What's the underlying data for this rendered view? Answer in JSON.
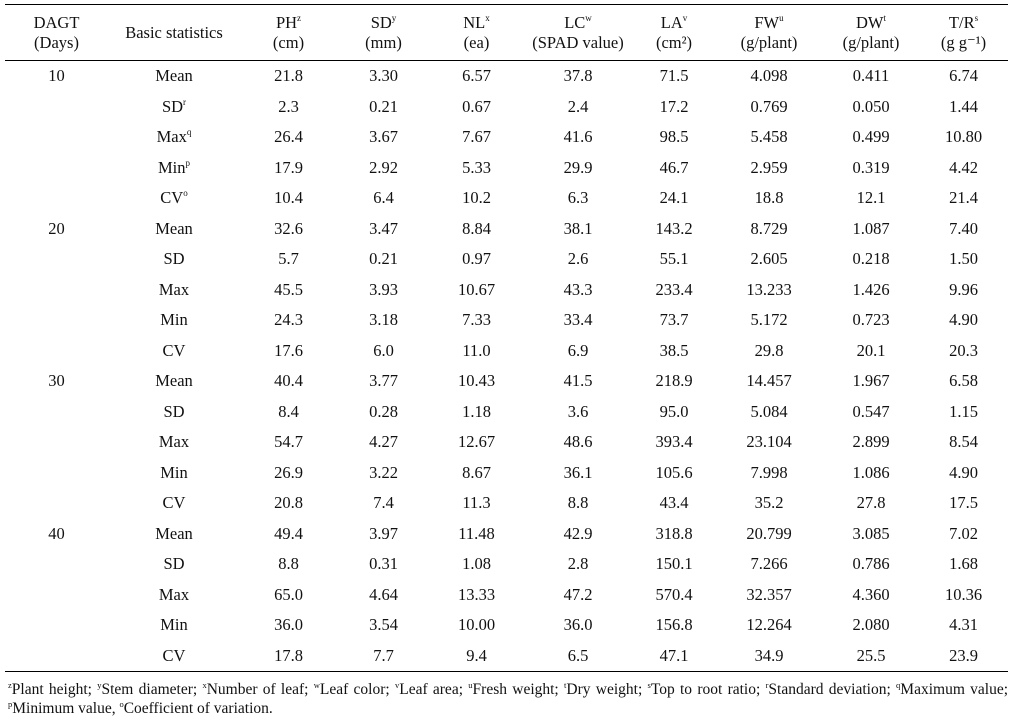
{
  "columns": [
    {
      "id": "dagt",
      "line1": "DAGT",
      "sup": "",
      "line2": "(Days)"
    },
    {
      "id": "stat",
      "line1": "Basic statistics",
      "sup": "",
      "line2": ""
    },
    {
      "id": "ph",
      "line1": "PH",
      "sup": "z",
      "line2": "(cm)"
    },
    {
      "id": "sd",
      "line1": "SD",
      "sup": "y",
      "line2": "(mm)"
    },
    {
      "id": "nl",
      "line1": "NL",
      "sup": "x",
      "line2": "(ea)"
    },
    {
      "id": "lc",
      "line1": "LC",
      "sup": "w",
      "line2": "(SPAD value)"
    },
    {
      "id": "la",
      "line1": "LA",
      "sup": "v",
      "line2": "(cm²)"
    },
    {
      "id": "fw",
      "line1": "FW",
      "sup": "u",
      "line2": "(g/plant)"
    },
    {
      "id": "dw",
      "line1": "DW",
      "sup": "t",
      "line2": "(g/plant)"
    },
    {
      "id": "tr",
      "line1": "T/R",
      "sup": "s",
      "line2": "(g g⁻¹)"
    }
  ],
  "groups": [
    {
      "dagt": "10",
      "rows": [
        {
          "stat": "Mean",
          "sup": "",
          "values": [
            "21.8",
            "3.30",
            "6.57",
            "37.8",
            "71.5",
            "4.098",
            "0.411",
            "6.74"
          ]
        },
        {
          "stat": "SD",
          "sup": "r",
          "values": [
            "2.3",
            "0.21",
            "0.67",
            "2.4",
            "17.2",
            "0.769",
            "0.050",
            "1.44"
          ]
        },
        {
          "stat": "Max",
          "sup": "q",
          "values": [
            "26.4",
            "3.67",
            "7.67",
            "41.6",
            "98.5",
            "5.458",
            "0.499",
            "10.80"
          ]
        },
        {
          "stat": "Min",
          "sup": "p",
          "values": [
            "17.9",
            "2.92",
            "5.33",
            "29.9",
            "46.7",
            "2.959",
            "0.319",
            "4.42"
          ]
        },
        {
          "stat": "CV",
          "sup": "o",
          "values": [
            "10.4",
            "6.4",
            "10.2",
            "6.3",
            "24.1",
            "18.8",
            "12.1",
            "21.4"
          ]
        }
      ]
    },
    {
      "dagt": "20",
      "rows": [
        {
          "stat": "Mean",
          "sup": "",
          "values": [
            "32.6",
            "3.47",
            "8.84",
            "38.1",
            "143.2",
            "8.729",
            "1.087",
            "7.40"
          ]
        },
        {
          "stat": "SD",
          "sup": "",
          "values": [
            "5.7",
            "0.21",
            "0.97",
            "2.6",
            "55.1",
            "2.605",
            "0.218",
            "1.50"
          ]
        },
        {
          "stat": "Max",
          "sup": "",
          "values": [
            "45.5",
            "3.93",
            "10.67",
            "43.3",
            "233.4",
            "13.233",
            "1.426",
            "9.96"
          ]
        },
        {
          "stat": "Min",
          "sup": "",
          "values": [
            "24.3",
            "3.18",
            "7.33",
            "33.4",
            "73.7",
            "5.172",
            "0.723",
            "4.90"
          ]
        },
        {
          "stat": "CV",
          "sup": "",
          "values": [
            "17.6",
            "6.0",
            "11.0",
            "6.9",
            "38.5",
            "29.8",
            "20.1",
            "20.3"
          ]
        }
      ]
    },
    {
      "dagt": "30",
      "rows": [
        {
          "stat": "Mean",
          "sup": "",
          "values": [
            "40.4",
            "3.77",
            "10.43",
            "41.5",
            "218.9",
            "14.457",
            "1.967",
            "6.58"
          ]
        },
        {
          "stat": "SD",
          "sup": "",
          "values": [
            "8.4",
            "0.28",
            "1.18",
            "3.6",
            "95.0",
            "5.084",
            "0.547",
            "1.15"
          ]
        },
        {
          "stat": "Max",
          "sup": "",
          "values": [
            "54.7",
            "4.27",
            "12.67",
            "48.6",
            "393.4",
            "23.104",
            "2.899",
            "8.54"
          ]
        },
        {
          "stat": "Min",
          "sup": "",
          "values": [
            "26.9",
            "3.22",
            "8.67",
            "36.1",
            "105.6",
            "7.998",
            "1.086",
            "4.90"
          ]
        },
        {
          "stat": "CV",
          "sup": "",
          "values": [
            "20.8",
            "7.4",
            "11.3",
            "8.8",
            "43.4",
            "35.2",
            "27.8",
            "17.5"
          ]
        }
      ]
    },
    {
      "dagt": "40",
      "rows": [
        {
          "stat": "Mean",
          "sup": "",
          "values": [
            "49.4",
            "3.97",
            "11.48",
            "42.9",
            "318.8",
            "20.799",
            "3.085",
            "7.02"
          ]
        },
        {
          "stat": "SD",
          "sup": "",
          "values": [
            "8.8",
            "0.31",
            "1.08",
            "2.8",
            "150.1",
            "7.266",
            "0.786",
            "1.68"
          ]
        },
        {
          "stat": "Max",
          "sup": "",
          "values": [
            "65.0",
            "4.64",
            "13.33",
            "47.2",
            "570.4",
            "32.357",
            "4.360",
            "10.36"
          ]
        },
        {
          "stat": "Min",
          "sup": "",
          "values": [
            "36.0",
            "3.54",
            "10.00",
            "36.0",
            "156.8",
            "12.264",
            "2.080",
            "4.31"
          ]
        },
        {
          "stat": "CV",
          "sup": "",
          "values": [
            "17.8",
            "7.7",
            "9.4",
            "6.5",
            "47.1",
            "34.9",
            "25.5",
            "23.9"
          ]
        }
      ]
    }
  ],
  "footnotes": [
    {
      "sup": "z",
      "text": "Plant height; "
    },
    {
      "sup": "y",
      "text": "Stem diameter; "
    },
    {
      "sup": "x",
      "text": "Number of leaf; "
    },
    {
      "sup": "w",
      "text": "Leaf color; "
    },
    {
      "sup": "v",
      "text": "Leaf area; "
    },
    {
      "sup": "u",
      "text": "Fresh weight; "
    },
    {
      "sup": "t",
      "text": "Dry weight; "
    },
    {
      "sup": "s",
      "text": "Top to root ratio; "
    },
    {
      "sup": "r",
      "text": "Standard deviation; "
    },
    {
      "sup": "q",
      "text": "Maximum value; "
    },
    {
      "sup": "p",
      "text": "Minimum value, "
    },
    {
      "sup": "o",
      "text": "Coefficient of variation."
    }
  ]
}
